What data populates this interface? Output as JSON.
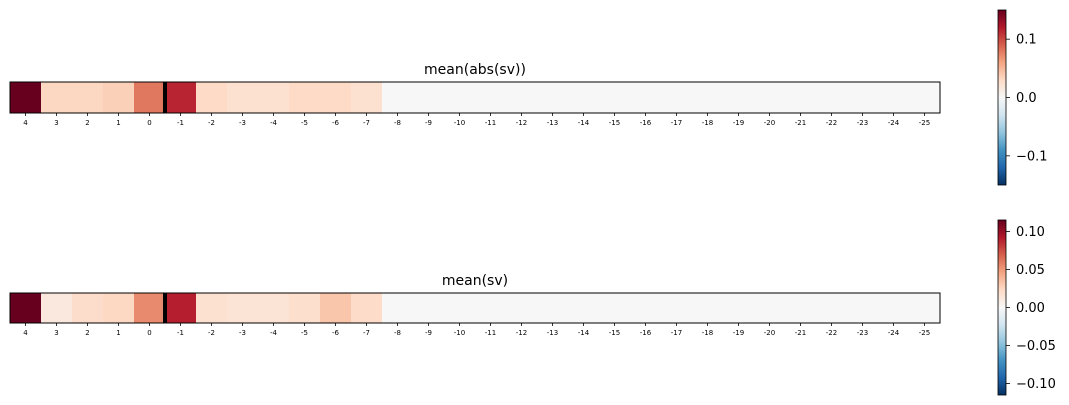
{
  "chart_data": [
    {
      "type": "heatmap",
      "title": "mean(abs(sv))",
      "categories": [
        "4",
        "3",
        "2",
        "1",
        "0",
        "-1",
        "-2",
        "-3",
        "-4",
        "-5",
        "-6",
        "-7",
        "-8",
        "-9",
        "-10",
        "-11",
        "-12",
        "-13",
        "-14",
        "-15",
        "-16",
        "-17",
        "-18",
        "-19",
        "-20",
        "-21",
        "-22",
        "-23",
        "-24",
        "-25"
      ],
      "values": [
        0.15,
        0.032,
        0.032,
        0.036,
        0.08,
        0.115,
        0.03,
        0.024,
        0.024,
        0.03,
        0.03,
        0.024,
        0,
        0,
        0,
        0,
        0,
        0,
        0,
        0,
        0,
        0,
        0,
        0,
        0,
        0,
        0,
        0,
        0,
        0
      ],
      "divider_after_index": 4,
      "colormap": "RdBu_r",
      "vlim": [
        -0.15,
        0.15
      ],
      "colorbar_ticks": [
        0.1,
        0.0,
        -0.1
      ],
      "colorbar_tick_labels": [
        "0.1",
        "0.0",
        "−0.1"
      ]
    },
    {
      "type": "heatmap",
      "title": "mean(sv)",
      "categories": [
        "4",
        "3",
        "2",
        "1",
        "0",
        "-1",
        "-2",
        "-3",
        "-4",
        "-5",
        "-6",
        "-7",
        "-8",
        "-9",
        "-10",
        "-11",
        "-12",
        "-13",
        "-14",
        "-15",
        "-16",
        "-17",
        "-18",
        "-19",
        "-20",
        "-21",
        "-22",
        "-23",
        "-24",
        "-25"
      ],
      "values": [
        0.115,
        0.012,
        0.021,
        0.024,
        0.055,
        0.09,
        0.018,
        0.016,
        0.016,
        0.02,
        0.032,
        0.022,
        0,
        0,
        0,
        0,
        0,
        0,
        0,
        0,
        0,
        0,
        0,
        0,
        0,
        0,
        0,
        0,
        0,
        0
      ],
      "divider_after_index": 4,
      "colormap": "RdBu_r",
      "vlim": [
        -0.115,
        0.115
      ],
      "colorbar_ticks": [
        0.1,
        0.05,
        0.0,
        -0.05,
        -0.1
      ],
      "colorbar_tick_labels": [
        "0.10",
        "0.05",
        "0.00",
        "−0.05",
        "−0.10"
      ]
    }
  ]
}
